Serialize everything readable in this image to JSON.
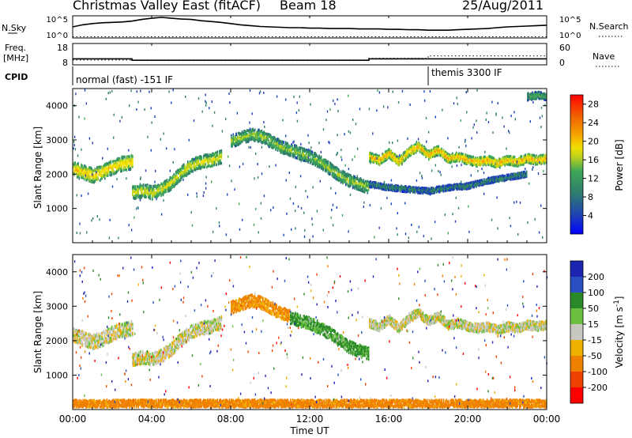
{
  "header": {
    "title": "Christmas Valley East (fitACF)",
    "beam": "Beam 18",
    "date": "25/Aug/2011"
  },
  "side_labels": {
    "nsky": "N.Sky",
    "freq_line1": "Freq.",
    "freq_line2": "[MHz]",
    "cpid": "CPID",
    "nsearch": "N.Search",
    "nave": "Nave"
  },
  "cpid_segments": [
    {
      "label": "normal (fast) -151 IF"
    },
    {
      "label": "themis 3300 IF"
    }
  ],
  "colors": {
    "frame": "#000000",
    "power_scale": [
      "#0000ff",
      "#1e3fb8",
      "#2f7f6a",
      "#3ea65a",
      "#b8d020",
      "#f0e000",
      "#f5a000",
      "#f06000",
      "#ff0000"
    ],
    "velocity_scale": [
      "#1b25b0",
      "#2a4fc0",
      "#2a8a2a",
      "#6cc040",
      "#c8c8c0",
      "#f0b000",
      "#f08000",
      "#f04000",
      "#ff0000"
    ]
  },
  "chart_data": [
    {
      "type": "line",
      "panel": "noise",
      "x": "Time UT (hours)",
      "left_ticks": [
        "10^5",
        "10^0"
      ],
      "right_ticks": [
        "10^5",
        "10^0"
      ],
      "series": [
        {
          "name": "N.Sky",
          "style": "solid",
          "x": [
            0,
            0.5,
            1,
            1.5,
            2,
            2.5,
            3,
            3.5,
            4,
            4.5,
            5,
            5.5,
            6,
            6.5,
            7,
            7.5,
            8,
            8.5,
            9,
            9.5,
            10,
            10.5,
            11,
            11.5,
            12,
            12.5,
            13,
            13.5,
            14,
            14.5,
            15,
            15.5,
            16,
            16.5,
            17,
            17.5,
            18,
            18.5,
            19,
            19.5,
            20,
            20.5,
            21,
            21.5,
            22,
            22.5,
            23,
            23.5,
            24
          ],
          "y": [
            2.5,
            3.0,
            3.3,
            3.5,
            3.6,
            3.7,
            3.9,
            4.3,
            4.6,
            4.8,
            4.6,
            4.4,
            4.3,
            4.0,
            3.8,
            3.6,
            3.3,
            3.0,
            2.8,
            2.6,
            2.5,
            2.4,
            2.3,
            2.3,
            2.2,
            2.2,
            2.1,
            2.1,
            2.1,
            2.0,
            2.0,
            2.0,
            1.9,
            1.9,
            1.8,
            1.8,
            1.7,
            1.7,
            1.7,
            1.8,
            1.9,
            2.0,
            2.1,
            2.3,
            2.5,
            2.6,
            2.7,
            2.8,
            2.9
          ]
        },
        {
          "name": "N.Search",
          "style": "dotted",
          "x": [
            0,
            24
          ],
          "y": [
            0.1,
            0.1
          ]
        }
      ]
    },
    {
      "type": "line",
      "panel": "frequency",
      "left_ticks": [
        "18",
        "8"
      ],
      "right_ticks": [
        "60",
        "0"
      ],
      "series": [
        {
          "name": "Freq.",
          "style": "solid",
          "x": [
            0,
            3,
            3,
            15,
            15,
            24
          ],
          "y": [
            11.0,
            11.0,
            10.2,
            10.2,
            11.0,
            11.0
          ]
        },
        {
          "name": "Nave",
          "style": "dotted",
          "x": [
            0,
            3,
            3,
            15,
            15,
            18,
            18,
            24
          ],
          "y": [
            14,
            14,
            12,
            12,
            20,
            20,
            28,
            28
          ]
        }
      ]
    },
    {
      "type": "heatmap",
      "panel": "power",
      "xlabel": "",
      "ylabel": "Slant Range [km]",
      "xlim": [
        0,
        24
      ],
      "ylim": [
        0,
        4500
      ],
      "yticks": [
        1000,
        2000,
        3000,
        4000
      ],
      "colorbar": {
        "label": "Power [dB]",
        "ticks": [
          4,
          8,
          12,
          16,
          20,
          24,
          28
        ],
        "range": [
          0,
          30
        ]
      },
      "bands": [
        {
          "x": [
            0,
            0.5,
            1,
            1.5,
            2,
            2.5,
            3
          ],
          "range": [
            2150,
            2050,
            1950,
            2050,
            2200,
            2300,
            2350
          ],
          "width": 420,
          "power": 20
        },
        {
          "x": [
            3,
            3.5,
            4,
            4.5,
            5,
            5.5,
            6,
            6.5,
            7,
            7.5
          ],
          "range": [
            1450,
            1500,
            1450,
            1550,
            1750,
            2050,
            2250,
            2350,
            2400,
            2500
          ],
          "width": 380,
          "power": 17
        },
        {
          "x": [
            8,
            8.5,
            9,
            9.5,
            10,
            10.5,
            11,
            11.5,
            12,
            12.5,
            13,
            13.5,
            14,
            14.5,
            15
          ],
          "range": [
            2950,
            3050,
            3150,
            3100,
            2950,
            2800,
            2700,
            2600,
            2500,
            2350,
            2150,
            1950,
            1800,
            1700,
            1600
          ],
          "width": 360,
          "power": 14
        },
        {
          "x": [
            15,
            15.5,
            16,
            16.5,
            17,
            17.5,
            18,
            18.5,
            19,
            19.5,
            20,
            20.5,
            21,
            21.5,
            22,
            22.5,
            23,
            23.5,
            24
          ],
          "range": [
            2500,
            2400,
            2600,
            2350,
            2650,
            2800,
            2550,
            2700,
            2450,
            2500,
            2400,
            2350,
            2400,
            2300,
            2400,
            2350,
            2450,
            2400,
            2450
          ],
          "width": 260,
          "power": 22
        },
        {
          "x": [
            15,
            16,
            17,
            18,
            19,
            20,
            21,
            22,
            23
          ],
          "range": [
            1700,
            1600,
            1550,
            1500,
            1600,
            1650,
            1800,
            1900,
            2000
          ],
          "width": 160,
          "power": 8
        },
        {
          "x": [
            23,
            23.5,
            24
          ],
          "range": [
            4250,
            4300,
            4250
          ],
          "width": 200,
          "power": 12
        }
      ]
    },
    {
      "type": "heatmap",
      "panel": "velocity",
      "xlabel": "Time UT",
      "ylabel": "Slant Range [km]",
      "xlim": [
        0,
        24
      ],
      "ylim": [
        0,
        4500
      ],
      "xticks": [
        "00:00",
        "04:00",
        "08:00",
        "12:00",
        "16:00",
        "20:00",
        "00:00"
      ],
      "yticks": [
        1000,
        2000,
        3000,
        4000
      ],
      "colorbar": {
        "label": "Velocity [m s^-1]",
        "ticks": [
          200,
          100,
          50,
          15,
          -15,
          -50,
          -100,
          -200
        ],
        "range": [
          -250,
          250
        ]
      },
      "bands": [
        {
          "x": [
            0,
            0.5,
            1,
            1.5,
            2,
            2.5,
            3
          ],
          "range": [
            2150,
            2050,
            1950,
            2050,
            2200,
            2300,
            2350
          ],
          "width": 420,
          "velocity": 0
        },
        {
          "x": [
            3,
            3.5,
            4,
            4.5,
            5,
            5.5,
            6,
            6.5,
            7,
            7.5
          ],
          "range": [
            1450,
            1500,
            1450,
            1550,
            1750,
            2050,
            2250,
            2350,
            2400,
            2500
          ],
          "width": 380,
          "velocity": 0
        },
        {
          "x": [
            8,
            8.5,
            9,
            9.5,
            10,
            10.5,
            11
          ],
          "range": [
            2950,
            3050,
            3150,
            3100,
            2950,
            2800,
            2700
          ],
          "width": 360,
          "velocity": -60
        },
        {
          "x": [
            11,
            12,
            13,
            14,
            15
          ],
          "range": [
            2650,
            2500,
            2200,
            1800,
            1600
          ],
          "width": 360,
          "velocity": 40
        },
        {
          "x": [
            15,
            15.5,
            16,
            16.5,
            17,
            17.5,
            18,
            18.5,
            19,
            19.5,
            20,
            20.5,
            21,
            21.5,
            22,
            22.5,
            23,
            23.5,
            24
          ],
          "range": [
            2500,
            2400,
            2600,
            2350,
            2650,
            2800,
            2550,
            2700,
            2450,
            2500,
            2400,
            2350,
            2400,
            2300,
            2400,
            2350,
            2450,
            2400,
            2450
          ],
          "width": 260,
          "velocity": 0
        },
        {
          "x": [
            0,
            4,
            8,
            12,
            16,
            20,
            24
          ],
          "range": [
            150,
            150,
            150,
            150,
            150,
            150,
            150
          ],
          "width": 250,
          "velocity": -70
        }
      ]
    }
  ]
}
